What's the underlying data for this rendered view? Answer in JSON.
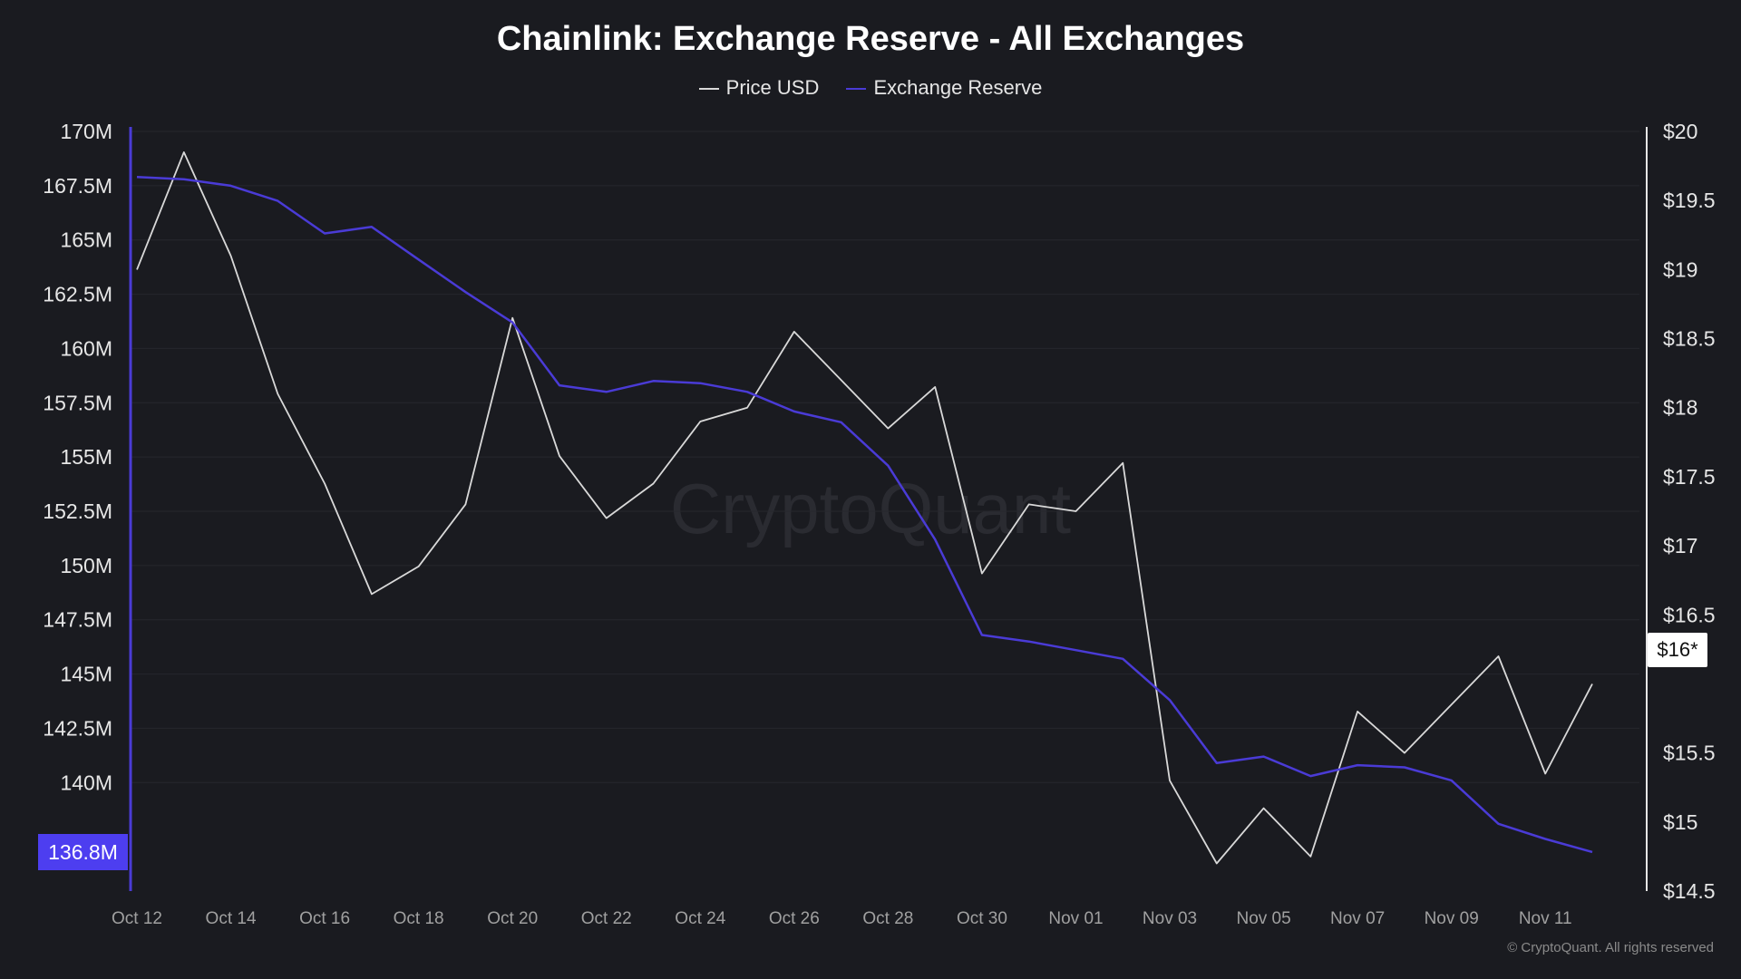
{
  "chart_data": {
    "type": "line",
    "title": "Chainlink: Exchange Reserve - All Exchanges",
    "x": [
      "Oct 12",
      "Oct 13",
      "Oct 14",
      "Oct 15",
      "Oct 16",
      "Oct 17",
      "Oct 18",
      "Oct 19",
      "Oct 20",
      "Oct 21",
      "Oct 22",
      "Oct 23",
      "Oct 24",
      "Oct 25",
      "Oct 26",
      "Oct 27",
      "Oct 28",
      "Oct 29",
      "Oct 30",
      "Oct 31",
      "Nov 01",
      "Nov 02",
      "Nov 03",
      "Nov 04",
      "Nov 05",
      "Nov 06",
      "Nov 07",
      "Nov 08",
      "Nov 09",
      "Nov 10",
      "Nov 11",
      "Nov 12"
    ],
    "x_tick_labels": [
      "Oct 12",
      "Oct 14",
      "Oct 16",
      "Oct 18",
      "Oct 20",
      "Oct 22",
      "Oct 24",
      "Oct 26",
      "Oct 28",
      "Oct 30",
      "Nov 01",
      "Nov 03",
      "Nov 05",
      "Nov 07",
      "Nov 09",
      "Nov 11"
    ],
    "series": [
      {
        "name": "Price USD",
        "axis": "right",
        "color": "#d9d9d9",
        "values": [
          19.0,
          19.85,
          19.1,
          18.1,
          17.45,
          16.65,
          16.85,
          17.3,
          18.65,
          17.65,
          17.2,
          17.45,
          17.9,
          18.0,
          18.55,
          18.2,
          17.85,
          18.15,
          16.8,
          17.3,
          17.25,
          17.6,
          15.3,
          14.7,
          15.1,
          14.75,
          15.8,
          15.5,
          15.85,
          16.2,
          15.35,
          16.0
        ]
      },
      {
        "name": "Exchange Reserve",
        "axis": "left",
        "color": "#4a3bd6",
        "values": [
          167.9,
          167.8,
          167.5,
          166.8,
          165.3,
          165.6,
          164.1,
          162.6,
          161.2,
          158.3,
          158.0,
          158.5,
          158.4,
          158.0,
          157.1,
          156.6,
          154.6,
          151.2,
          146.8,
          146.5,
          146.1,
          145.7,
          143.8,
          140.9,
          141.2,
          140.3,
          140.8,
          140.7,
          140.1,
          138.1,
          137.4,
          136.8
        ]
      }
    ],
    "left_axis": {
      "ylim": [
        135,
        170
      ],
      "ticks": [
        "170M",
        "167.5M",
        "165M",
        "162.5M",
        "160M",
        "157.5M",
        "155M",
        "152.5M",
        "150M",
        "147.5M",
        "145M",
        "142.5M",
        "140M"
      ]
    },
    "right_axis": {
      "ylim": [
        14.5,
        20
      ],
      "ticks": [
        "$20",
        "$19.5",
        "$19",
        "$18.5",
        "$18",
        "$17.5",
        "$17",
        "$16.5",
        "$15.5",
        "$15",
        "$14.5"
      ]
    },
    "current_reserve_label": "136.8M",
    "current_price_label": "$16*",
    "legend_position": "top-center",
    "grid": true
  },
  "watermark": "CryptoQuant",
  "copyright": "© CryptoQuant. All rights reserved",
  "colors": {
    "background": "#1a1b20",
    "reserve": "#4a3bd6",
    "price": "#d9d9d9",
    "grid": "#26272d"
  }
}
